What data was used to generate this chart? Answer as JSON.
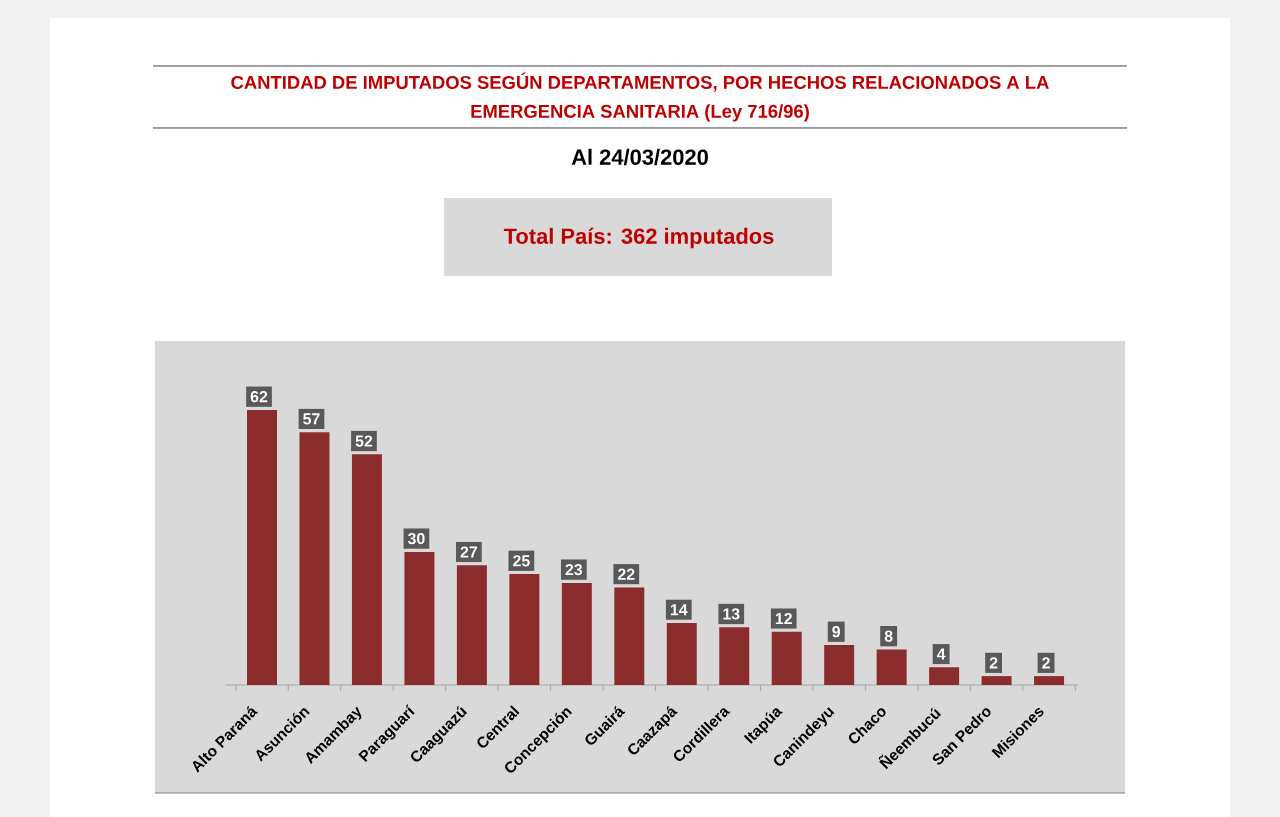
{
  "chart_data": {
    "type": "bar",
    "title": "CANTIDAD DE IMPUTADOS SEGÚN DEPARTAMENTOS, POR HECHOS RELACIONADOS A LA EMERGENCIA SANITARIA (Ley 716/96)",
    "subtitle": "Al 24/03/2020",
    "annotations": [
      "Total País: 362 imputados"
    ],
    "categories": [
      "Alto Paraná",
      "Asunción",
      "Amambay",
      "Paraguarí",
      "Caaguazú",
      "Central",
      "Concepción",
      "Guairá",
      "Caazapá",
      "Cordillera",
      "Itapúa",
      "Canindeyu",
      "Chaco",
      "Ñeembucú",
      "San Pedro",
      "Misiones"
    ],
    "values": [
      62,
      57,
      52,
      30,
      27,
      25,
      23,
      22,
      14,
      13,
      12,
      9,
      8,
      4,
      2,
      2
    ],
    "color": "#8c2d2d",
    "data_labels": true
  }
}
